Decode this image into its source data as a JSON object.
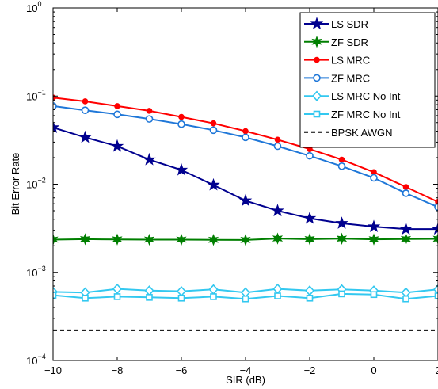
{
  "chart_data": {
    "type": "line",
    "xlabel": "SIR (dB)",
    "ylabel": "Bit Error Rate",
    "xlim": [
      -10,
      2
    ],
    "ylim": [
      0.0001,
      1
    ],
    "yscale": "log",
    "grid": false,
    "legend_position": "top-right",
    "x_ticks": [
      -10,
      -8,
      -6,
      -4,
      -2,
      0,
      2
    ],
    "x_tick_labels": [
      "−10",
      "−8",
      "−6",
      "−4",
      "−2",
      "0",
      "2"
    ],
    "y_ticks": [
      {
        "value": 0.0001,
        "base": "10",
        "exp": "−4"
      },
      {
        "value": 0.001,
        "base": "10",
        "exp": "−3"
      },
      {
        "value": 0.01,
        "base": "10",
        "exp": "−2"
      },
      {
        "value": 0.1,
        "base": "10",
        "exp": "−1"
      },
      {
        "value": 1,
        "base": "10",
        "exp": "0"
      }
    ],
    "x": [
      -10,
      -9,
      -8,
      -7,
      -6,
      -5,
      -4,
      -3,
      -2,
      -1,
      0,
      1,
      2
    ],
    "series": [
      {
        "name": "LS SDR",
        "color": "#00008f",
        "marker": "star",
        "dash": "solid",
        "values": [
          0.044,
          0.034,
          0.027,
          0.019,
          0.0145,
          0.0098,
          0.0065,
          0.005,
          0.0041,
          0.0036,
          0.0033,
          0.0031,
          0.0031
        ]
      },
      {
        "name": "ZF SDR",
        "color": "#007f00",
        "marker": "star6",
        "dash": "solid",
        "values": [
          0.00235,
          0.00238,
          0.00236,
          0.00235,
          0.00235,
          0.00234,
          0.00233,
          0.00242,
          0.00238,
          0.00241,
          0.00237,
          0.00239,
          0.0024
        ]
      },
      {
        "name": "LS MRC",
        "color": "#ff0000",
        "marker": "dot",
        "dash": "solid",
        "values": [
          0.096,
          0.087,
          0.077,
          0.068,
          0.058,
          0.049,
          0.04,
          0.032,
          0.025,
          0.019,
          0.0137,
          0.0093,
          0.0063
        ]
      },
      {
        "name": "ZF MRC",
        "color": "#1f77d8",
        "marker": "circle",
        "dash": "solid",
        "values": [
          0.077,
          0.069,
          0.062,
          0.055,
          0.048,
          0.041,
          0.034,
          0.027,
          0.021,
          0.016,
          0.0118,
          0.0079,
          0.0055
        ]
      },
      {
        "name": "LS MRC No Int",
        "color": "#33c8f0",
        "marker": "diamond",
        "dash": "solid",
        "values": [
          0.0006,
          0.00059,
          0.00065,
          0.00062,
          0.00061,
          0.00064,
          0.00059,
          0.00065,
          0.00062,
          0.00064,
          0.00062,
          0.00059,
          0.00064
        ]
      },
      {
        "name": "ZF MRC No Int",
        "color": "#33c8f0",
        "marker": "square",
        "dash": "solid",
        "values": [
          0.00055,
          0.00051,
          0.00053,
          0.00052,
          0.00051,
          0.00053,
          0.0005,
          0.00054,
          0.00051,
          0.00057,
          0.00056,
          0.0005,
          0.00054
        ]
      },
      {
        "name": "BPSK AWGN",
        "color": "#000000",
        "marker": "none",
        "dash": "dashed",
        "values": [
          0.00022,
          0.00022,
          0.00022,
          0.00022,
          0.00022,
          0.00022,
          0.00022,
          0.00022,
          0.00022,
          0.00022,
          0.00022,
          0.00022,
          0.00022
        ]
      }
    ]
  }
}
